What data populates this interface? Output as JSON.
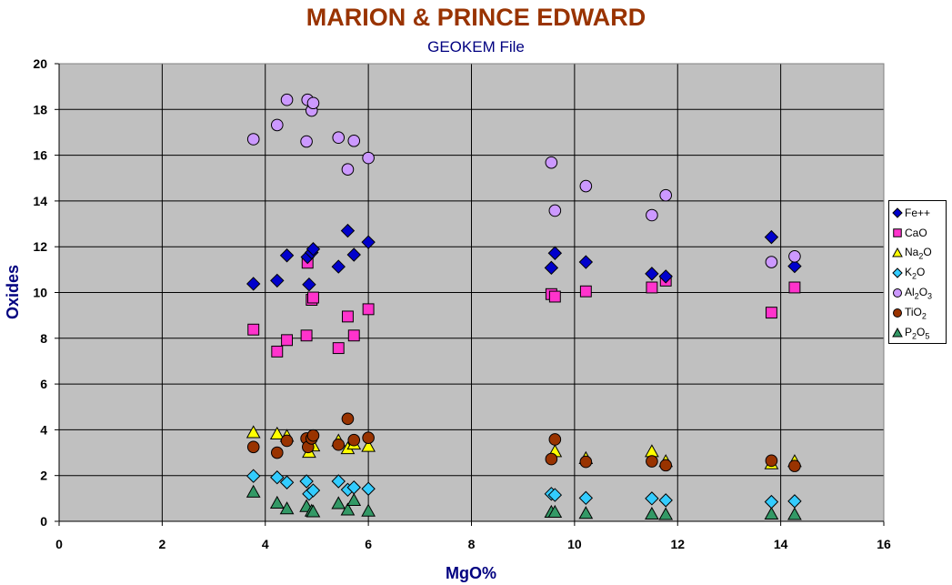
{
  "chart_data": {
    "type": "scatter",
    "title": "MARION & PRINCE EDWARD",
    "subtitle": "GEOKEM File",
    "xlabel": "MgO%",
    "ylabel": "Oxides",
    "xlim": [
      0,
      16
    ],
    "ylim": [
      0,
      20
    ],
    "xticks": [
      "0",
      "2",
      "4",
      "6",
      "8",
      "10",
      "12",
      "14",
      "16"
    ],
    "yticks": [
      "0",
      "2",
      "4",
      "6",
      "8",
      "10",
      "12",
      "14",
      "16",
      "18",
      "20"
    ],
    "grid": true,
    "legend_position": "right",
    "series": [
      {
        "name": "Fe++",
        "label_parts": [
          "Fe++"
        ],
        "marker": "diamond",
        "color": "#0000cc",
        "x": [
          3.77,
          4.23,
          4.42,
          4.82,
          4.85,
          4.9,
          4.93,
          5.42,
          5.6,
          5.72,
          6.0,
          9.55,
          9.62,
          10.22,
          11.5,
          11.77,
          13.82,
          14.27
        ],
        "y": [
          10.38,
          10.52,
          11.62,
          11.55,
          10.35,
          11.75,
          11.9,
          11.13,
          12.7,
          11.65,
          12.2,
          11.08,
          11.72,
          11.33,
          10.82,
          10.7,
          12.42,
          11.15
        ]
      },
      {
        "name": "CaO",
        "label_parts": [
          "CaO"
        ],
        "marker": "square",
        "color": "#ff33cc",
        "x": [
          3.77,
          4.23,
          4.42,
          4.8,
          4.82,
          4.9,
          4.93,
          5.42,
          5.6,
          5.72,
          6.0,
          9.55,
          9.62,
          10.22,
          11.5,
          11.77,
          13.82,
          14.27
        ],
        "y": [
          8.38,
          7.42,
          7.92,
          8.12,
          11.3,
          9.68,
          9.78,
          7.57,
          8.95,
          8.12,
          9.27,
          9.93,
          9.82,
          10.05,
          10.22,
          10.52,
          9.12,
          10.22
        ]
      },
      {
        "name": "Na2O",
        "label_parts": [
          "Na",
          "2",
          "O"
        ],
        "marker": "triangle",
        "color": "#ffff00",
        "x": [
          3.77,
          4.23,
          4.42,
          4.85,
          4.93,
          5.42,
          5.6,
          5.72,
          6.0,
          9.62,
          10.22,
          11.5,
          11.77,
          13.82,
          14.27
        ],
        "y": [
          3.88,
          3.82,
          3.72,
          3.02,
          3.3,
          3.52,
          3.18,
          3.38,
          3.28,
          3.05,
          2.75,
          3.05,
          2.62,
          2.52,
          2.62
        ]
      },
      {
        "name": "K2O",
        "label_parts": [
          "K",
          "2",
          "O"
        ],
        "marker": "diamond",
        "color": "#33ccff",
        "x": [
          3.77,
          4.23,
          4.42,
          4.8,
          4.85,
          4.93,
          5.42,
          5.6,
          5.72,
          6.0,
          9.55,
          9.62,
          10.22,
          11.5,
          11.77,
          13.82,
          14.27
        ],
        "y": [
          1.98,
          1.92,
          1.7,
          1.75,
          1.2,
          1.35,
          1.75,
          1.38,
          1.48,
          1.42,
          1.2,
          1.15,
          1.02,
          1.0,
          0.92,
          0.85,
          0.88
        ]
      },
      {
        "name": "Al2O3",
        "label_parts": [
          "Al",
          "2",
          "O",
          "3"
        ],
        "marker": "circle",
        "color": "#cc99ff",
        "x": [
          3.77,
          4.23,
          4.42,
          4.8,
          4.82,
          4.9,
          4.93,
          5.42,
          5.6,
          5.72,
          6.0,
          9.55,
          9.62,
          10.22,
          11.5,
          11.77,
          13.82,
          14.27
        ],
        "y": [
          16.7,
          17.32,
          18.42,
          16.6,
          18.42,
          17.95,
          18.28,
          16.77,
          15.38,
          16.63,
          15.88,
          15.68,
          13.58,
          14.65,
          13.38,
          14.25,
          11.33,
          11.58
        ]
      },
      {
        "name": "TiO2",
        "label_parts": [
          "TiO",
          "2"
        ],
        "marker": "circle",
        "color": "#993300",
        "x": [
          3.77,
          4.23,
          4.42,
          4.8,
          4.83,
          4.9,
          4.93,
          5.42,
          5.6,
          5.72,
          6.0,
          9.55,
          9.62,
          10.22,
          11.5,
          11.77,
          13.82,
          14.27
        ],
        "y": [
          3.25,
          3.0,
          3.52,
          3.62,
          3.25,
          3.62,
          3.75,
          3.35,
          4.48,
          3.55,
          3.65,
          2.72,
          3.58,
          2.6,
          2.62,
          2.45,
          2.65,
          2.42
        ]
      },
      {
        "name": "P2O5",
        "label_parts": [
          "P",
          "2",
          "O",
          "5"
        ],
        "marker": "triangle",
        "color": "#339966",
        "x": [
          3.77,
          4.23,
          4.42,
          4.8,
          4.9,
          4.93,
          5.42,
          5.6,
          5.72,
          6.0,
          9.55,
          9.62,
          10.22,
          11.5,
          11.77,
          13.82,
          14.27
        ],
        "y": [
          1.28,
          0.8,
          0.55,
          0.65,
          0.45,
          0.42,
          0.78,
          0.5,
          0.92,
          0.45,
          0.4,
          0.4,
          0.35,
          0.32,
          0.3,
          0.32,
          0.3
        ]
      }
    ]
  }
}
